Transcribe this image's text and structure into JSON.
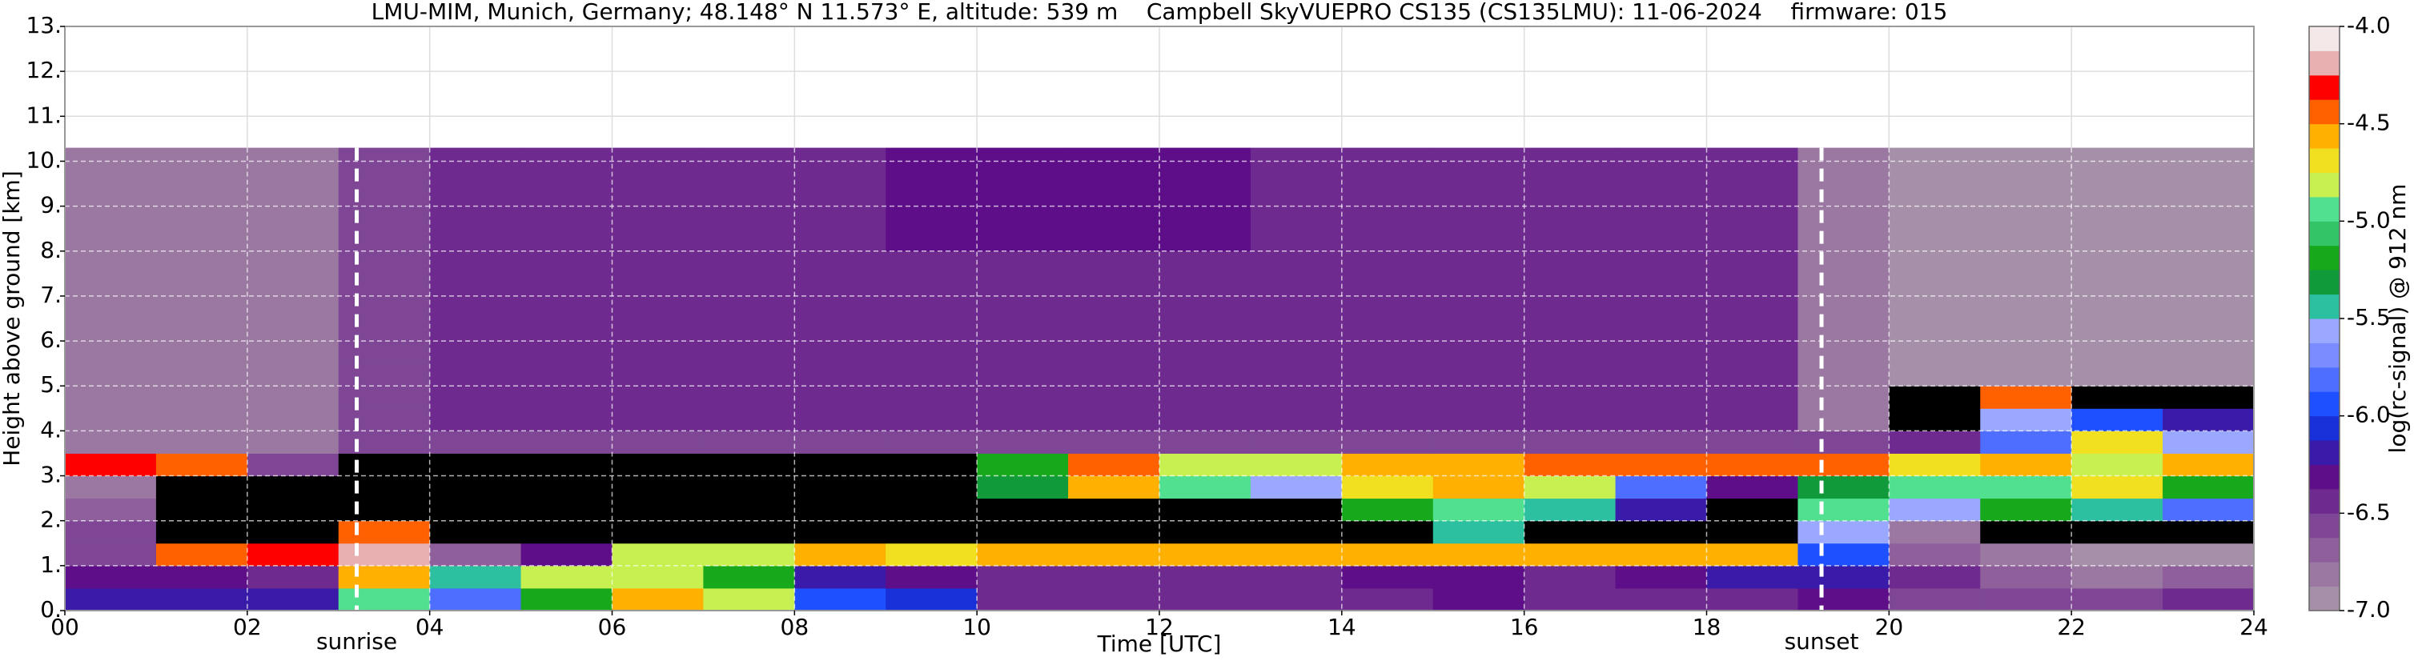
{
  "chart_data": {
    "type": "heatmap",
    "title": "LMU-MIM, Munich, Germany; 48.148° N 11.573° E, altitude: 539 m    Campbell SkyVUEPRO CS135 (CS135LMU): 11-06-2024    firmware: 015",
    "x_label": "Time [UTC]",
    "y_label": "Height above ground [km]",
    "colorbar_label": "log(rc-signal) @ 912 nm",
    "xlim": [
      0,
      24
    ],
    "xticks": [
      {
        "value": 0,
        "label": "00"
      },
      {
        "value": 2,
        "label": "02"
      },
      {
        "value": 4,
        "label": "04"
      },
      {
        "value": 6,
        "label": "06"
      },
      {
        "value": 8,
        "label": "08"
      },
      10,
      12,
      14,
      16,
      18,
      20,
      22,
      24
    ],
    "ylim": [
      0,
      13
    ],
    "yticks": [
      {
        "value": 0,
        "label": "0."
      },
      {
        "value": 1,
        "label": "1."
      },
      {
        "value": 2,
        "label": "2."
      },
      {
        "value": 3,
        "label": "3."
      },
      {
        "value": 4,
        "label": "4."
      },
      {
        "value": 5,
        "label": "5."
      },
      {
        "value": 6,
        "label": "6."
      },
      {
        "value": 7,
        "label": "7."
      },
      {
        "value": 8,
        "label": "8."
      },
      {
        "value": 9,
        "label": "9."
      },
      {
        "value": 10,
        "label": "10."
      },
      {
        "value": 11,
        "label": "11."
      },
      {
        "value": 12,
        "label": "12."
      },
      {
        "value": 13,
        "label": "13."
      }
    ],
    "clim": [
      -7,
      -4
    ],
    "cticks": [
      {
        "value": -7,
        "label": "-7.0"
      },
      -6.5,
      {
        "value": -6,
        "label": "-6.0"
      },
      -5.5,
      {
        "value": -5,
        "label": "-5.0"
      },
      -4.5,
      {
        "value": -4,
        "label": "-4.0"
      }
    ],
    "colormap": [
      "#a68fa8",
      "#9a78a2",
      "#8e5f9b",
      "#7f4696",
      "#6e2a8f",
      "#5e0e88",
      "#3a1aa8",
      "#1830d8",
      "#1e50ff",
      "#4d6eff",
      "#7a8cff",
      "#9aa8ff",
      "#2cc0a0",
      "#109a3a",
      "#17a81c",
      "#34c468",
      "#50e090",
      "#c8f050",
      "#f0e020",
      "#ffb000",
      "#ff6000",
      "#ff0000",
      "#e8b0b0",
      "#f4e8e8"
    ],
    "masked_color": "#000000",
    "grid": true,
    "annotations": [
      {
        "text": "sunrise",
        "x": 3.2
      },
      {
        "text": "sunset",
        "x": 19.26
      }
    ],
    "x_bins": [
      0,
      1,
      2,
      3,
      4,
      5,
      6,
      7,
      8,
      9,
      10,
      11,
      12,
      13,
      14,
      15,
      16,
      17,
      18,
      19,
      20,
      21,
      22,
      23,
      24
    ],
    "y_bins": [
      0,
      0.5,
      1,
      1.5,
      2,
      2.5,
      3,
      3.5,
      4,
      4.5,
      5,
      5.5,
      6,
      6.5,
      7,
      7.5,
      8,
      8.5,
      9,
      9.5,
      10,
      10.3
    ],
    "values": [
      [
        -6.2,
        -6.2,
        -6.2,
        -5.0,
        -5.8,
        -5.2,
        -4.6,
        -4.8,
        -6.0,
        -6.1,
        -6.5,
        -6.5,
        -6.5,
        -6.5,
        -6.4,
        -6.3,
        -6.4,
        -6.5,
        -6.5,
        -6.3,
        -6.6,
        -6.6,
        -6.6,
        -6.5
      ],
      [
        -6.3,
        -6.3,
        -6.4,
        -4.6,
        -5.5,
        -4.8,
        -4.8,
        -5.2,
        -6.2,
        -6.3,
        -6.4,
        -6.4,
        -6.4,
        -6.4,
        -6.3,
        -6.3,
        -6.4,
        -6.3,
        -6.2,
        -6.2,
        -6.5,
        -6.7,
        -6.8,
        -6.7
      ],
      [
        -6.6,
        -4.4,
        -4.3,
        -4.2,
        -6.7,
        -6.3,
        -4.8,
        -4.8,
        -4.6,
        -4.7,
        -4.6,
        -4.6,
        -4.6,
        -4.6,
        -4.6,
        -4.6,
        -4.6,
        -4.6,
        -4.6,
        -6.0,
        -6.7,
        -6.8,
        -6.9,
        -6.9
      ],
      [
        -6.6,
        null,
        null,
        -4.4,
        null,
        null,
        null,
        null,
        null,
        null,
        null,
        null,
        null,
        null,
        null,
        -5.5,
        null,
        null,
        null,
        -5.6,
        -6.8,
        null,
        null,
        null
      ],
      [
        -6.7,
        null,
        null,
        null,
        null,
        null,
        null,
        null,
        null,
        null,
        null,
        null,
        null,
        null,
        -5.2,
        -5.0,
        -5.4,
        -6.2,
        null,
        -5.0,
        -5.6,
        -5.2,
        -5.4,
        -5.8
      ],
      [
        -6.8,
        null,
        null,
        null,
        null,
        null,
        null,
        null,
        null,
        null,
        -5.3,
        -4.6,
        -5.0,
        -5.6,
        -4.7,
        -4.6,
        -4.8,
        -5.8,
        -6.3,
        -5.3,
        -5.0,
        -5.0,
        -4.7,
        -5.2
      ],
      [
        -4.3,
        -4.5,
        -6.6,
        null,
        null,
        null,
        null,
        null,
        null,
        null,
        -5.2,
        -4.4,
        -4.8,
        -4.8,
        -4.6,
        -4.6,
        -4.5,
        -4.4,
        -4.4,
        -4.4,
        -4.7,
        -4.6,
        -4.8,
        -4.6
      ],
      [
        -6.85,
        -6.85,
        -6.85,
        -6.6,
        -6.6,
        -6.6,
        -6.6,
        -6.6,
        -6.6,
        -6.6,
        -6.6,
        -6.6,
        -6.6,
        -6.6,
        -6.6,
        -6.6,
        -6.6,
        -6.6,
        -6.6,
        -6.6,
        -6.4,
        -5.8,
        -4.7,
        -5.6
      ],
      [
        -6.85,
        -6.85,
        -6.85,
        -6.6,
        -6.5,
        -6.5,
        -6.5,
        -6.5,
        -6.5,
        -6.5,
        -6.5,
        -6.5,
        -6.5,
        -6.5,
        -6.5,
        -6.5,
        -6.5,
        -6.5,
        -6.5,
        -6.8,
        null,
        -5.6,
        -6.0,
        -6.2
      ],
      [
        -6.85,
        -6.85,
        -6.85,
        -6.6,
        -6.5,
        -6.5,
        -6.5,
        -6.5,
        -6.5,
        -6.5,
        -6.5,
        -6.5,
        -6.5,
        -6.5,
        -6.5,
        -6.5,
        -6.5,
        -6.5,
        -6.5,
        -6.8,
        null,
        -4.5,
        null,
        null
      ],
      [
        -6.85,
        -6.85,
        -6.85,
        -6.6,
        -6.5,
        -6.4,
        -6.5,
        -6.5,
        -6.5,
        -6.5,
        -6.5,
        -6.5,
        -6.5,
        -6.5,
        -6.5,
        -6.5,
        -6.5,
        -6.5,
        -6.5,
        -6.8,
        -6.95,
        -6.95,
        -6.95,
        -6.95
      ],
      [
        -6.85,
        -6.85,
        -6.85,
        -6.6,
        -6.5,
        -6.4,
        -6.5,
        -6.5,
        -6.5,
        -6.5,
        -6.5,
        -6.5,
        -6.5,
        -6.5,
        -6.5,
        -6.5,
        -6.5,
        -6.5,
        -6.5,
        -6.8,
        -6.95,
        -6.95,
        -6.95,
        -6.95
      ],
      [
        -6.85,
        -6.85,
        -6.85,
        -6.6,
        -6.5,
        -6.4,
        -6.5,
        -6.5,
        -6.5,
        -6.5,
        -6.5,
        -6.5,
        -6.5,
        -6.5,
        -6.5,
        -6.5,
        -6.5,
        -6.5,
        -6.5,
        -6.8,
        -6.95,
        -6.95,
        -6.95,
        -6.95
      ],
      [
        -6.85,
        -6.85,
        -6.85,
        -6.6,
        -6.5,
        -6.4,
        -6.5,
        -6.5,
        -6.5,
        -6.5,
        -6.5,
        -6.5,
        -6.5,
        -6.5,
        -6.5,
        -6.5,
        -6.5,
        -6.5,
        -6.5,
        -6.8,
        -6.95,
        -6.95,
        -6.95,
        -6.95
      ],
      [
        -6.85,
        -6.85,
        -6.85,
        -6.6,
        -6.5,
        -6.4,
        -6.5,
        -6.5,
        -6.5,
        -6.5,
        -6.5,
        -6.5,
        -6.5,
        -6.5,
        -6.5,
        -6.5,
        -6.5,
        -6.5,
        -6.5,
        -6.8,
        -6.95,
        -6.95,
        -6.95,
        -6.95
      ],
      [
        -6.85,
        -6.85,
        -6.85,
        -6.6,
        -6.5,
        -6.4,
        -6.5,
        -6.5,
        -6.5,
        -6.5,
        -6.5,
        -6.5,
        -6.5,
        -6.5,
        -6.5,
        -6.5,
        -6.5,
        -6.5,
        -6.5,
        -6.8,
        -6.95,
        -6.95,
        -6.95,
        -6.95
      ],
      [
        -6.85,
        -6.85,
        -6.85,
        -6.6,
        -6.4,
        -6.4,
        -6.4,
        -6.4,
        -6.4,
        -6.3,
        -6.3,
        -6.3,
        -6.3,
        -6.4,
        -6.4,
        -6.4,
        -6.4,
        -6.4,
        -6.5,
        -6.8,
        -6.95,
        -6.95,
        -6.95,
        -6.95
      ],
      [
        -6.85,
        -6.85,
        -6.85,
        -6.6,
        -6.4,
        -6.4,
        -6.4,
        -6.4,
        -6.4,
        -6.3,
        -6.3,
        -6.3,
        -6.3,
        -6.4,
        -6.4,
        -6.4,
        -6.4,
        -6.4,
        -6.5,
        -6.8,
        -6.95,
        -6.95,
        -6.95,
        -6.95
      ],
      [
        -6.85,
        -6.85,
        -6.85,
        -6.6,
        -6.4,
        -6.4,
        -6.4,
        -6.4,
        -6.4,
        -6.3,
        -6.3,
        -6.3,
        -6.3,
        -6.4,
        -6.4,
        -6.4,
        -6.4,
        -6.4,
        -6.5,
        -6.8,
        -6.95,
        -6.95,
        -6.95,
        -6.95
      ],
      [
        -6.85,
        -6.85,
        -6.85,
        -6.6,
        -6.4,
        -6.4,
        -6.4,
        -6.4,
        -6.4,
        -6.3,
        -6.3,
        -6.3,
        -6.3,
        -6.4,
        -6.4,
        -6.4,
        -6.4,
        -6.4,
        -6.5,
        -6.8,
        -6.95,
        -6.95,
        -6.95,
        -6.95
      ],
      [
        -6.85,
        -6.85,
        -6.85,
        -6.6,
        -6.4,
        -6.4,
        -6.4,
        -6.4,
        -6.4,
        -6.3,
        -6.3,
        -6.3,
        -6.3,
        -6.4,
        -6.4,
        -6.4,
        -6.4,
        -6.4,
        -6.5,
        -6.8,
        -6.95,
        -6.95,
        -6.95,
        -6.95
      ]
    ]
  }
}
